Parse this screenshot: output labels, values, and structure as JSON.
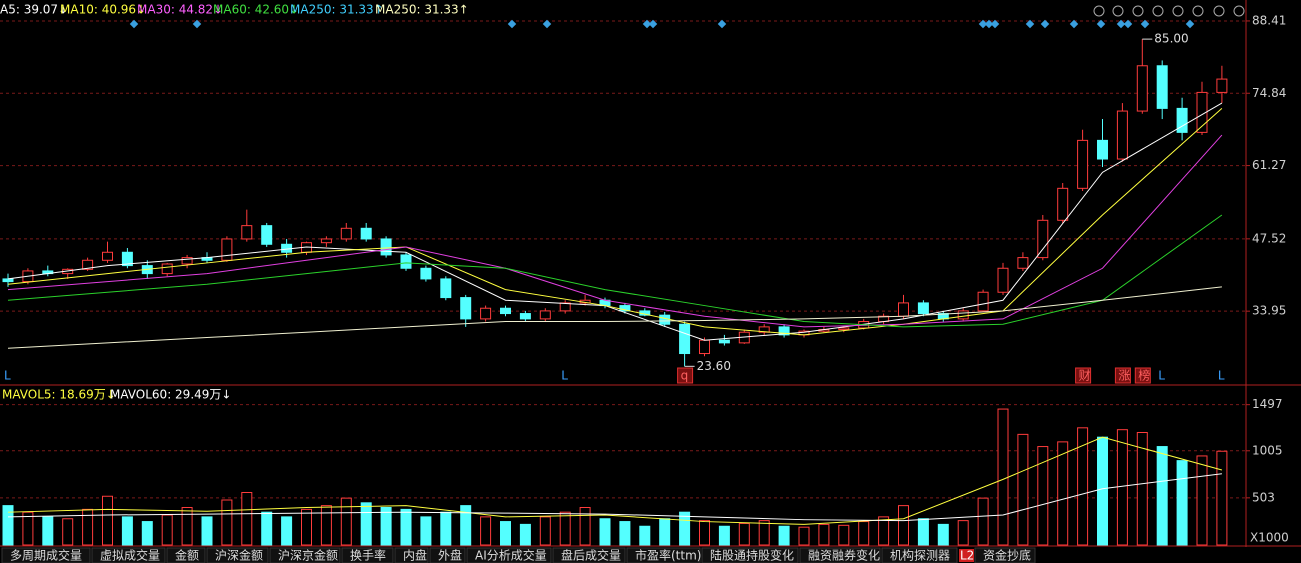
{
  "chart_data": {
    "type": "candlestick",
    "price_panel": {
      "ylim": [
        20.47,
        92.34
      ],
      "yticks": [
        33.95,
        47.52,
        61.27,
        74.84,
        88.41
      ],
      "grid": true,
      "up_color": "#ff3c3c",
      "down_color": "#54ffff",
      "indicators": [
        {
          "label": "A5: 39.07↓",
          "color": "#ffffff"
        },
        {
          "label": "MA10: 40.96↓",
          "color": "#ffff40"
        },
        {
          "label": "MA30: 44.82↓",
          "color": "#ff60ff"
        },
        {
          "label": "MA60: 42.60↓",
          "color": "#40e040"
        },
        {
          "label": "MA250: 31.33↑",
          "color": "#40d0ff"
        },
        {
          "label": "MA250: 31.33↑",
          "color": "#ffffc0"
        }
      ],
      "candles": [
        [
          40,
          41,
          38.5,
          39.5
        ],
        [
          39.5,
          42,
          39,
          41.5
        ],
        [
          41.5,
          42.5,
          40.5,
          41
        ],
        [
          41,
          42,
          40,
          41.8
        ],
        [
          41.8,
          44,
          41.5,
          43.5
        ],
        [
          43.5,
          47,
          43,
          45
        ],
        [
          45,
          45.8,
          42,
          42.5
        ],
        [
          42.5,
          43.5,
          40,
          41
        ],
        [
          41,
          43,
          40.5,
          42.8
        ],
        [
          42.8,
          44.5,
          42,
          44
        ],
        [
          44,
          45,
          43,
          43.5
        ],
        [
          43.5,
          48,
          43.2,
          47.5
        ],
        [
          47.5,
          53,
          47,
          50
        ],
        [
          50,
          50.5,
          46,
          46.5
        ],
        [
          46.5,
          47.5,
          44,
          45
        ],
        [
          45,
          47,
          44.5,
          46.8
        ],
        [
          46.8,
          48,
          46,
          47.5
        ],
        [
          47.5,
          50.5,
          47,
          49.5
        ],
        [
          49.5,
          50.5,
          47,
          47.5
        ],
        [
          47.5,
          48,
          44,
          44.5
        ],
        [
          44.5,
          45,
          41.5,
          42
        ],
        [
          42,
          42.5,
          39.5,
          40
        ],
        [
          40,
          40.5,
          36,
          36.5
        ],
        [
          36.5,
          37,
          31,
          32.5
        ],
        [
          32.5,
          35,
          32,
          34.5
        ],
        [
          34.5,
          35,
          33,
          33.5
        ],
        [
          33.5,
          34,
          32,
          32.5
        ],
        [
          32.5,
          34.5,
          32,
          34
        ],
        [
          34,
          36,
          33.5,
          35.5
        ],
        [
          35.5,
          37,
          35,
          36
        ],
        [
          36,
          36.5,
          34.5,
          35
        ],
        [
          35,
          35.5,
          33.5,
          34
        ],
        [
          34,
          34.5,
          33,
          33.2
        ],
        [
          33.2,
          33.8,
          31,
          31.5
        ],
        [
          31.5,
          32,
          23.6,
          26
        ],
        [
          26,
          29,
          25.5,
          28.5
        ],
        [
          28.5,
          29.5,
          27.5,
          28
        ],
        [
          28,
          30.5,
          27.8,
          30
        ],
        [
          30,
          31.5,
          29.5,
          31
        ],
        [
          31,
          31.5,
          29,
          29.5
        ],
        [
          29.5,
          30.5,
          29,
          30.2
        ],
        [
          30.2,
          31,
          30,
          30.5
        ],
        [
          30.5,
          31,
          30,
          30.8
        ],
        [
          30.8,
          32.5,
          30.5,
          32
        ],
        [
          32,
          33.5,
          31.5,
          33
        ],
        [
          33,
          37,
          32.5,
          35.5
        ],
        [
          35.5,
          36,
          33,
          33.5
        ],
        [
          33.5,
          34,
          32,
          32.5
        ],
        [
          32.5,
          34.5,
          32,
          34
        ],
        [
          34,
          38,
          33.8,
          37.5
        ],
        [
          37.5,
          43,
          37,
          42
        ],
        [
          42,
          45,
          41.5,
          44
        ],
        [
          44,
          52,
          43.5,
          51
        ],
        [
          51,
          58,
          50.5,
          57
        ],
        [
          57,
          68,
          56.5,
          66
        ],
        [
          66,
          70,
          61,
          62.5
        ],
        [
          62.5,
          73,
          62,
          71.5
        ],
        [
          71.5,
          85,
          71,
          80
        ],
        [
          80,
          81,
          70,
          72
        ],
        [
          72,
          74,
          66,
          67.5
        ],
        [
          67.5,
          77,
          67,
          75
        ],
        [
          75,
          80,
          73,
          77.5
        ]
      ],
      "ma_x": [
        0,
        5,
        10,
        15,
        20,
        25,
        30,
        35,
        40,
        45,
        50,
        55,
        61
      ],
      "ma_lines": [
        {
          "color": "#ffffff",
          "values": [
            40,
            42.5,
            44,
            46,
            45,
            36,
            35,
            28.5,
            30,
            32.5,
            36,
            60,
            73
          ]
        },
        {
          "color": "#ffff40",
          "values": [
            39,
            41,
            43,
            45,
            46,
            38,
            35,
            31,
            29.5,
            31.5,
            34,
            52,
            72
          ]
        },
        {
          "color": "#e040e0",
          "values": [
            38,
            39.5,
            41,
            43.5,
            46,
            42,
            36,
            33,
            31,
            31.5,
            32.5,
            42,
            67
          ]
        },
        {
          "color": "#2bd12b",
          "values": [
            36,
            37.5,
            39,
            41,
            43,
            42,
            38,
            35,
            32,
            31,
            31.5,
            36,
            52
          ]
        },
        {
          "color": "#f0f0d0",
          "values": [
            27,
            28,
            29,
            30,
            31,
            32,
            32,
            32.2,
            32.5,
            33,
            34,
            36,
            38.5
          ]
        }
      ],
      "annotations": [
        {
          "text": "85.00",
          "index": 57,
          "value": 85
        },
        {
          "text": "23.60",
          "index": 34,
          "value": 23.6
        }
      ],
      "markers": [
        {
          "text": "L",
          "index": 0
        },
        {
          "text": "L",
          "index": 28
        },
        {
          "text": "q",
          "index": 34
        },
        {
          "text": "财",
          "index": 54
        },
        {
          "text": "涨",
          "index": 56
        },
        {
          "text": "榜",
          "index": 57
        },
        {
          "text": "L",
          "index": 58
        },
        {
          "text": "L",
          "index": 61
        }
      ]
    },
    "volume_panel": {
      "ylim": [
        0,
        1600
      ],
      "yticks": [
        503,
        1005,
        1497
      ],
      "unit": "X1000",
      "indicators": [
        {
          "label": "MAVOL5: 18.69万↓",
          "color": "#ffff40"
        },
        {
          "label": "MAVOL60: 29.49万↓",
          "color": "#ffffff"
        }
      ],
      "values": [
        420,
        350,
        300,
        280,
        380,
        520,
        300,
        250,
        320,
        400,
        300,
        480,
        560,
        350,
        300,
        380,
        420,
        500,
        450,
        400,
        380,
        300,
        350,
        420,
        300,
        250,
        220,
        300,
        350,
        400,
        280,
        250,
        200,
        280,
        350,
        260,
        200,
        230,
        260,
        200,
        190,
        220,
        210,
        250,
        300,
        420,
        280,
        220,
        260,
        500,
        1450,
        1180,
        1050,
        1100,
        1250,
        1150,
        1230,
        1200,
        1050,
        900,
        950,
        1000
      ],
      "ma_lines": [
        {
          "color": "#ffff40",
          "values": [
            350,
            380,
            360,
            400,
            420,
            300,
            320,
            250,
            220,
            280,
            700,
            1150,
            800
          ]
        },
        {
          "color": "#ffffff",
          "values": [
            300,
            320,
            330,
            340,
            350,
            340,
            330,
            300,
            270,
            260,
            320,
            600,
            760
          ]
        }
      ]
    },
    "tabs": [
      "多周期成交量",
      "虚拟成交量",
      "金额",
      "沪深金额",
      "沪深京金额",
      "换手率",
      "内盘",
      "外盘",
      "AI分析成交量",
      "盘后成交量",
      "市盈率(ttm)",
      "陆股通持股变化",
      "融资融券变化",
      "机构探测器",
      "资金抄底"
    ],
    "tab_badge": "L2"
  }
}
